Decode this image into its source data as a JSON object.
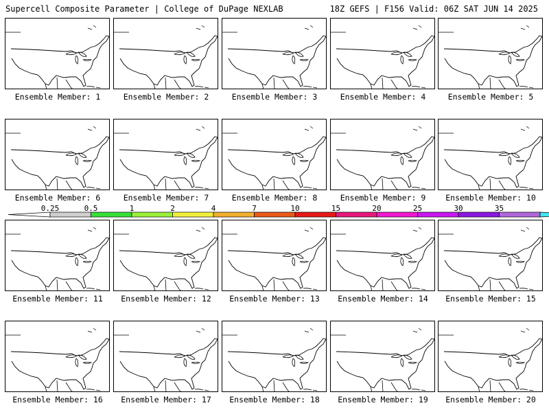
{
  "header": {
    "left_title": "Supercell Composite Parameter | College of DuPage NEXLAB",
    "right_title": "18Z GEFS | F156 Valid: 06Z SAT JUN 14 2025"
  },
  "colorbar": {
    "ticks": [
      "0.25",
      "0.5",
      "1",
      "2",
      "4",
      "7",
      "10",
      "15",
      "20",
      "25",
      "30",
      "35"
    ],
    "colors": [
      "#cfcfcf",
      "#36e036",
      "#9af03a",
      "#f0f03a",
      "#f0b030",
      "#e85a18",
      "#e81818",
      "#e8187a",
      "#f218d0",
      "#c818f0",
      "#8a18e0",
      "#b066d8",
      "#40e8f0"
    ]
  },
  "members": [
    {
      "label": "Ensemble Member: 1"
    },
    {
      "label": "Ensemble Member: 2"
    },
    {
      "label": "Ensemble Member: 3"
    },
    {
      "label": "Ensemble Member: 4"
    },
    {
      "label": "Ensemble Member: 5"
    },
    {
      "label": "Ensemble Member: 6"
    },
    {
      "label": "Ensemble Member: 7"
    },
    {
      "label": "Ensemble Member: 8"
    },
    {
      "label": "Ensemble Member: 9"
    },
    {
      "label": "Ensemble Member: 10"
    },
    {
      "label": "Ensemble Member: 11"
    },
    {
      "label": "Ensemble Member: 12"
    },
    {
      "label": "Ensemble Member: 13"
    },
    {
      "label": "Ensemble Member: 14"
    },
    {
      "label": "Ensemble Member: 15"
    },
    {
      "label": "Ensemble Member: 16"
    },
    {
      "label": "Ensemble Member: 17"
    },
    {
      "label": "Ensemble Member: 18"
    },
    {
      "label": "Ensemble Member: 19"
    },
    {
      "label": "Ensemble Member: 20"
    }
  ]
}
